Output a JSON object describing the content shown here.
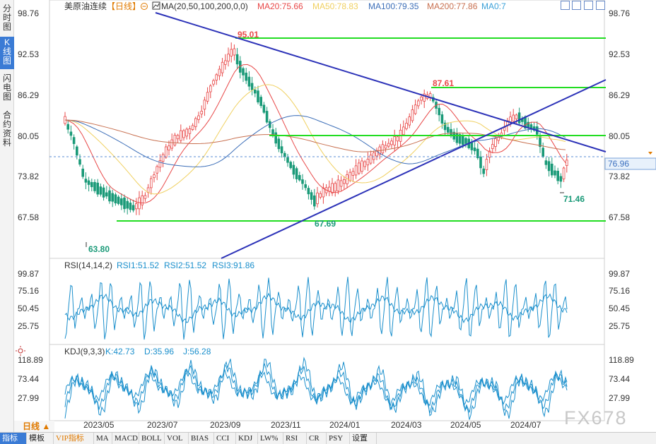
{
  "sidebar": {
    "tabs": [
      {
        "label": "分时图",
        "active": false
      },
      {
        "label": "K线图",
        "active": true
      },
      {
        "label": "闪电图",
        "active": false
      },
      {
        "label": "合约资料",
        "active": false
      }
    ]
  },
  "header": {
    "instrument": "美原油连续",
    "period_tag": "【日线】",
    "ma_params": "MA(20,50,100,200,0,0)",
    "ma_values": [
      {
        "label": "MA20:75.66",
        "color": "#e84848"
      },
      {
        "label": "MA50:78.83",
        "color": "#f0d060"
      },
      {
        "label": "MA100:79.35",
        "color": "#3d6fb8"
      },
      {
        "label": "MA200:77.86",
        "color": "#c87050"
      },
      {
        "label": "MA0:7",
        "color": "#3aa0d8"
      }
    ]
  },
  "colors": {
    "up": "#e84848",
    "down": "#1a9a78",
    "price_tag_bg": "#e8f1fb",
    "price_tag_fg": "#3a6fbf",
    "rsi": "#1a8fcc"
  },
  "price_axis": {
    "ticks": [
      "98.76",
      "92.53",
      "86.29",
      "80.05",
      "73.82",
      "67.58"
    ],
    "current": "76.96"
  },
  "annotations": {
    "high": "95.01",
    "high2": "87.61",
    "low": "63.80",
    "low2": "67.69",
    "last_low": "71.46"
  },
  "rsi": {
    "title": "RSI(14,14,2)",
    "values": [
      "RSI1:51.52",
      "RSI2:51.52",
      "RSI3:91.86"
    ],
    "ticks": [
      "99.87",
      "75.16",
      "50.45",
      "25.75"
    ]
  },
  "kdj": {
    "title": "KDJ(9,3,3)",
    "values": [
      "K:42.73",
      "D:35.96",
      "J:56.28"
    ],
    "ticks": [
      "118.89",
      "73.44",
      "27.99"
    ]
  },
  "dates": [
    "2023/05",
    "2023/07",
    "2023/09",
    "2023/11",
    "2024/01",
    "2024/03",
    "2024/05",
    "2024/07"
  ],
  "period_button": "日线 ▲",
  "toolbar": {
    "tabs": [
      "指标",
      "模板",
      "VIP指标",
      "MA",
      "MACD",
      "BOLL",
      "VOL",
      "BIAS",
      "CCI",
      "KDJ",
      "LW%",
      "RSI",
      "CR",
      "PSY",
      "设置"
    ]
  },
  "watermark": "FX678"
}
